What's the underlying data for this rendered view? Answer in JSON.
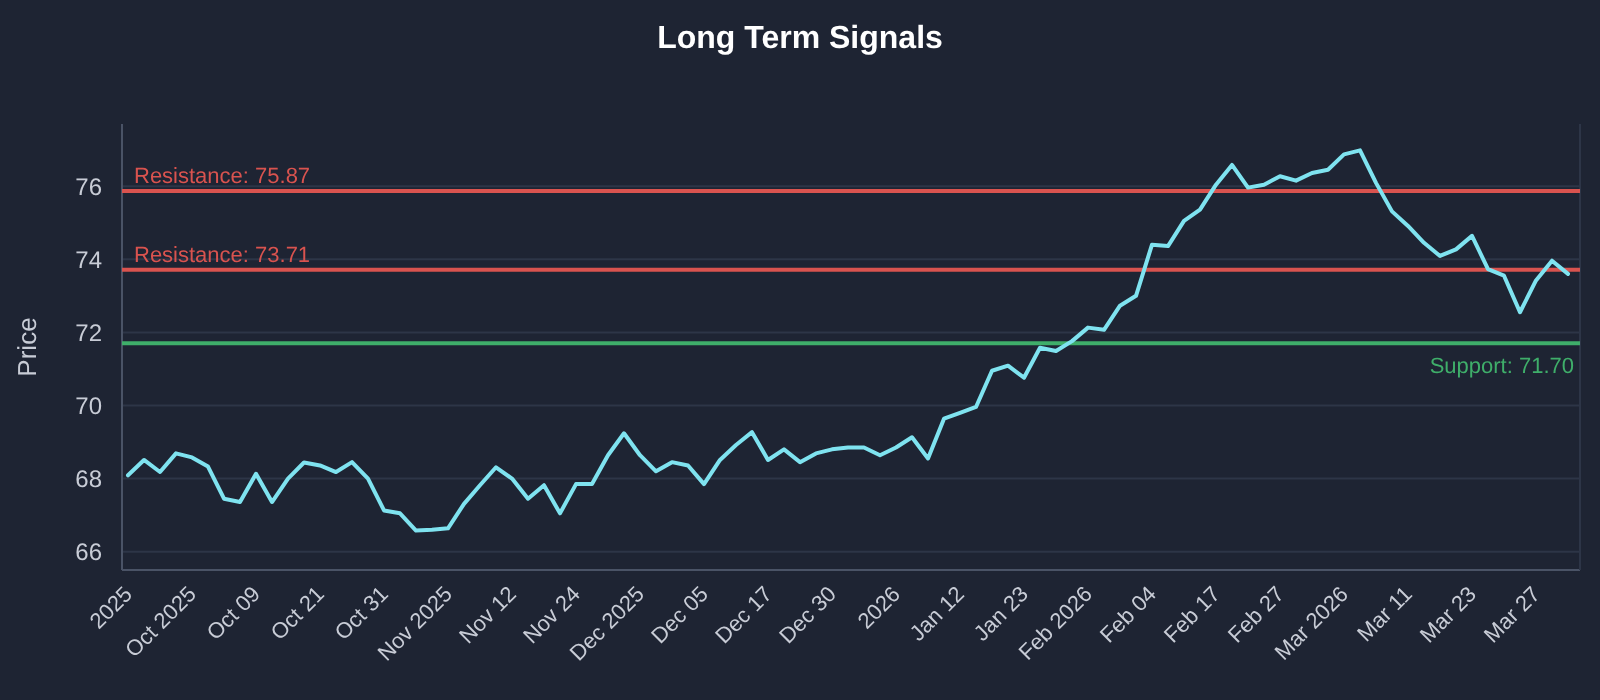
{
  "chart_data": {
    "type": "line",
    "title": "Long Term Signals",
    "ylabel": "Price",
    "categories": [
      "2025",
      null,
      null,
      null,
      "Oct 2025",
      null,
      null,
      null,
      "Oct 09",
      null,
      null,
      null,
      "Oct 21",
      null,
      null,
      null,
      "Oct 31",
      null,
      null,
      null,
      "Nov 2025",
      null,
      null,
      null,
      "Nov 12",
      null,
      null,
      null,
      "Nov 24",
      null,
      null,
      null,
      "Dec 2025",
      null,
      null,
      null,
      "Dec 05",
      null,
      null,
      null,
      "Dec 17",
      null,
      null,
      null,
      "Dec 30",
      null,
      null,
      null,
      "2026",
      null,
      null,
      null,
      "Jan 12",
      null,
      null,
      null,
      "Jan 23",
      null,
      null,
      null,
      "Feb 2026",
      null,
      null,
      null,
      "Feb 04",
      null,
      null,
      null,
      "Feb 17",
      null,
      null,
      null,
      "Feb 27",
      null,
      null,
      null,
      "Mar 2026",
      null,
      null,
      null,
      "Mar 11",
      null,
      null,
      null,
      "Mar 23",
      null,
      null,
      null,
      "Mar 27",
      null,
      null
    ],
    "series": [
      {
        "color": "#7fe3f0",
        "values": [
          68.09,
          68.51,
          68.18,
          68.69,
          68.58,
          68.33,
          67.45,
          67.36,
          68.13,
          67.36,
          68.0,
          68.44,
          68.36,
          68.18,
          68.45,
          68.0,
          67.13,
          67.05,
          66.58,
          66.6,
          66.64,
          67.31,
          67.82,
          68.31,
          68.0,
          67.45,
          67.82,
          67.05,
          67.85,
          67.85,
          68.64,
          69.24,
          68.64,
          68.2,
          68.45,
          68.36,
          67.85,
          68.51,
          68.92,
          69.27,
          68.51,
          68.8,
          68.45,
          68.69,
          68.8,
          68.85,
          68.85,
          68.64,
          68.85,
          69.13,
          68.55,
          69.64,
          69.8,
          69.96,
          70.95,
          71.09,
          70.76,
          71.58,
          71.49,
          71.76,
          72.13,
          72.07,
          72.73,
          73.0,
          74.4,
          74.36,
          75.05,
          75.36,
          76.04,
          76.58,
          75.96,
          76.04,
          76.27,
          76.15,
          76.36,
          76.45,
          76.87,
          76.98,
          76.09,
          75.31,
          74.91,
          74.45,
          74.09,
          74.27,
          74.64,
          73.73,
          73.55,
          72.55,
          73.42,
          73.96,
          73.6
        ]
      }
    ],
    "ylim": [
      65.5,
      77.7
    ],
    "yticks": [
      66,
      68,
      70,
      72,
      74,
      76
    ],
    "grid": "y",
    "ref_lines": [
      {
        "axis": "y",
        "value": 75.87,
        "label": "Resistance: 75.87",
        "color": "#d9534f"
      },
      {
        "axis": "y",
        "value": 73.71,
        "label": "Resistance: 73.71",
        "color": "#d9534f"
      },
      {
        "axis": "y",
        "value": 71.7,
        "label": "Support: 71.70",
        "color": "#3fae6a"
      }
    ]
  }
}
